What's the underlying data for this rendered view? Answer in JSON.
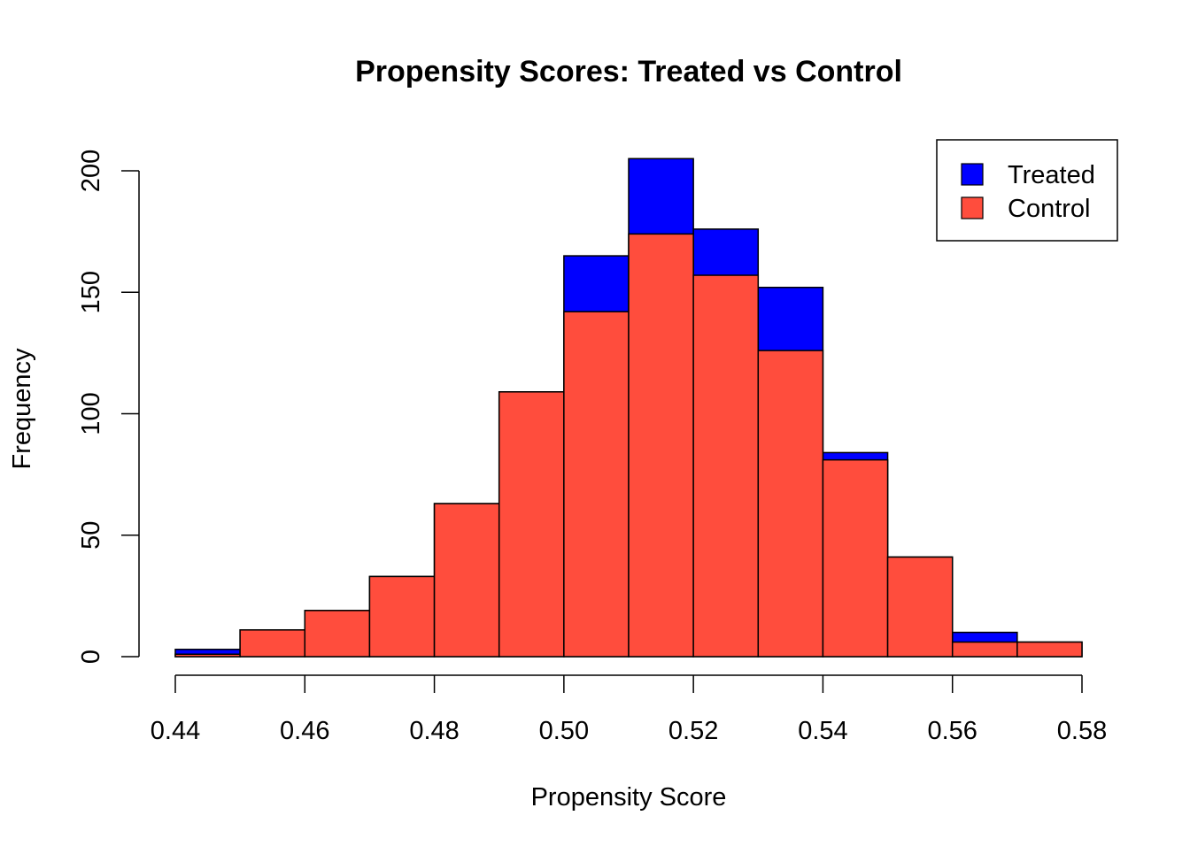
{
  "colors": {
    "treated": "#0000FF",
    "control": "#FF4D3D",
    "stroke": "#000000",
    "background": "#FFFFFF"
  },
  "chart_data": {
    "type": "bar",
    "subtype": "overlaid-histogram",
    "title": "Propensity Scores: Treated vs Control",
    "xlabel": "Propensity Score",
    "ylabel": "Frequency",
    "bins": [
      [
        0.44,
        0.45
      ],
      [
        0.45,
        0.46
      ],
      [
        0.46,
        0.47
      ],
      [
        0.47,
        0.48
      ],
      [
        0.48,
        0.49
      ],
      [
        0.49,
        0.5
      ],
      [
        0.5,
        0.51
      ],
      [
        0.51,
        0.52
      ],
      [
        0.52,
        0.53
      ],
      [
        0.53,
        0.54
      ],
      [
        0.54,
        0.55
      ],
      [
        0.55,
        0.56
      ],
      [
        0.56,
        0.57
      ],
      [
        0.57,
        0.58
      ]
    ],
    "series": [
      {
        "name": "Treated",
        "color": "#0000FF",
        "values": [
          3,
          11,
          19,
          33,
          63,
          109,
          165,
          205,
          176,
          152,
          84,
          41,
          10,
          6
        ]
      },
      {
        "name": "Control",
        "color": "#FF4D3D",
        "values": [
          1,
          11,
          19,
          33,
          63,
          109,
          142,
          174,
          157,
          126,
          81,
          41,
          6,
          6
        ]
      }
    ],
    "xlim": [
      0.44,
      0.58
    ],
    "ylim": [
      0,
      205
    ],
    "xticks": [
      "0.44",
      "0.46",
      "0.48",
      "0.50",
      "0.52",
      "0.54",
      "0.56",
      "0.58"
    ],
    "yticks": [
      "0",
      "50",
      "100",
      "150",
      "200"
    ],
    "legend": {
      "position": "top-right",
      "entries": [
        "Treated",
        "Control"
      ]
    },
    "grid": false
  }
}
